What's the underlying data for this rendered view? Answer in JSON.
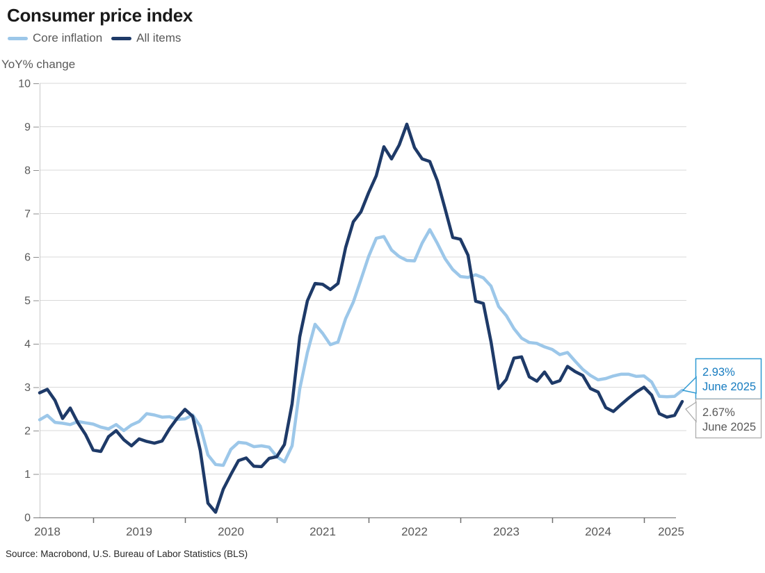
{
  "header": {
    "title": "Consumer price index"
  },
  "legend": [
    {
      "label": "Core inflation",
      "color": "#9cc7e9"
    },
    {
      "label": "All items",
      "color": "#1e3a68"
    }
  ],
  "chart_data": {
    "type": "line",
    "title": "Consumer price index",
    "ylabel": "YoY% change",
    "xlabel": "",
    "x_start": "2018-06",
    "x_end": "2025-06",
    "frequency": "monthly",
    "ylim": [
      0,
      10
    ],
    "ytick_interval": 1,
    "grid": "horizontal",
    "legend_position": "top-left",
    "year_labels": [
      "2018",
      "2019",
      "2020",
      "2021",
      "2022",
      "2023",
      "2024",
      "2025"
    ],
    "series": [
      {
        "name": "Core inflation",
        "color": "#9cc7e9",
        "values": [
          2.25,
          2.35,
          2.19,
          2.17,
          2.14,
          2.21,
          2.18,
          2.15,
          2.08,
          2.04,
          2.14,
          2.0,
          2.13,
          2.21,
          2.39,
          2.36,
          2.31,
          2.32,
          2.26,
          2.27,
          2.36,
          2.1,
          1.44,
          1.22,
          1.2,
          1.57,
          1.73,
          1.71,
          1.63,
          1.65,
          1.62,
          1.4,
          1.28,
          1.65,
          2.96,
          3.8,
          4.45,
          4.24,
          3.98,
          4.04,
          4.58,
          4.96,
          5.48,
          6.01,
          6.43,
          6.47,
          6.16,
          6.01,
          5.92,
          5.91,
          6.32,
          6.63,
          6.31,
          5.96,
          5.71,
          5.55,
          5.53,
          5.59,
          5.52,
          5.33,
          4.86,
          4.65,
          4.35,
          4.13,
          4.03,
          4.01,
          3.93,
          3.87,
          3.75,
          3.8,
          3.6,
          3.41,
          3.27,
          3.17,
          3.2,
          3.26,
          3.3,
          3.3,
          3.25,
          3.26,
          3.12,
          2.79,
          2.78,
          2.79,
          2.93
        ]
      },
      {
        "name": "All items",
        "color": "#1e3a68",
        "values": [
          2.87,
          2.95,
          2.7,
          2.28,
          2.52,
          2.18,
          1.91,
          1.55,
          1.52,
          1.86,
          2.0,
          1.79,
          1.65,
          1.81,
          1.75,
          1.71,
          1.76,
          2.05,
          2.29,
          2.49,
          2.33,
          1.54,
          0.33,
          0.12,
          0.65,
          0.99,
          1.31,
          1.37,
          1.18,
          1.17,
          1.36,
          1.4,
          1.68,
          2.62,
          4.16,
          4.99,
          5.39,
          5.37,
          5.25,
          5.39,
          6.22,
          6.81,
          7.04,
          7.48,
          7.87,
          8.54,
          8.26,
          8.58,
          9.06,
          8.52,
          8.26,
          8.2,
          7.75,
          7.11,
          6.45,
          6.41,
          6.04,
          4.98,
          4.93,
          4.05,
          2.97,
          3.18,
          3.67,
          3.7,
          3.24,
          3.14,
          3.35,
          3.09,
          3.15,
          3.48,
          3.36,
          3.27,
          2.97,
          2.89,
          2.53,
          2.44,
          2.6,
          2.75,
          2.89,
          3.0,
          2.82,
          2.39,
          2.31,
          2.35,
          2.67
        ]
      }
    ]
  },
  "callouts": {
    "core": {
      "value": "2.93%",
      "date": "June 2025",
      "text_color": "#177cc0",
      "border_color": "#2f9ad3"
    },
    "all_items": {
      "value": "2.67%",
      "date": "June 2025",
      "text_color": "#595959",
      "border_color": "#a9a9a9"
    }
  },
  "source": {
    "text": "Source: Macrobond, U.S. Bureau of Labor Statistics (BLS)"
  }
}
